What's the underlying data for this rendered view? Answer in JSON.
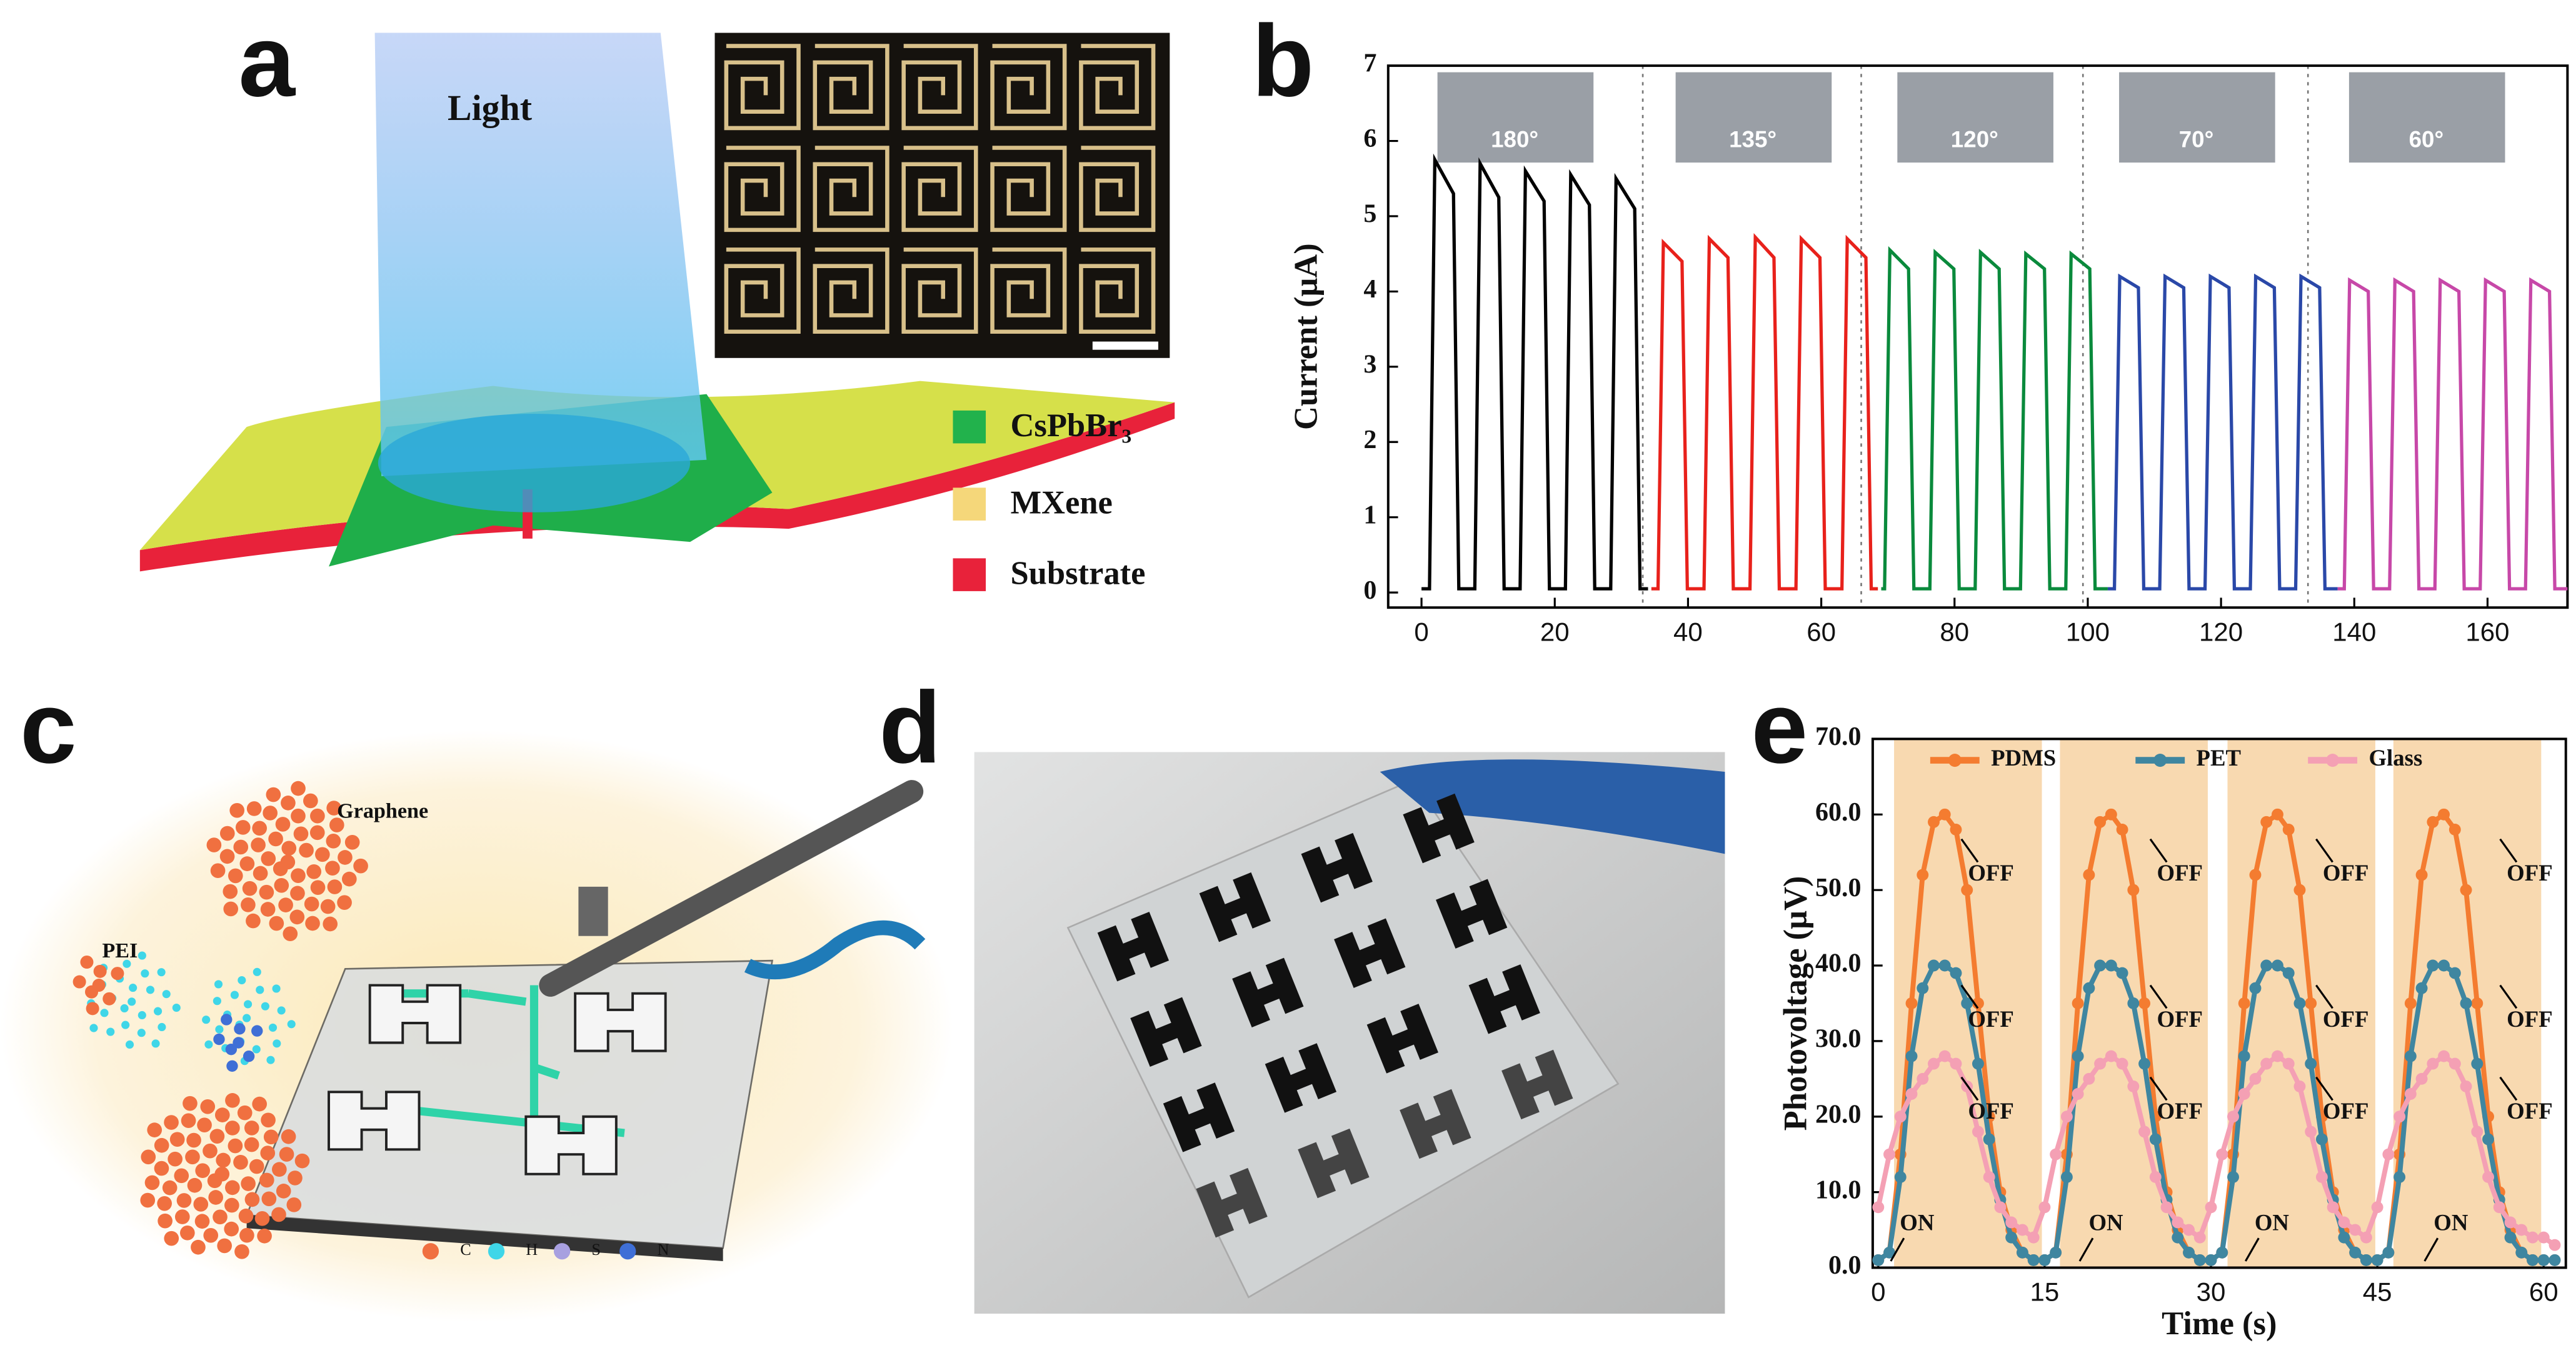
{
  "figure": {
    "panel_labels": [
      "a",
      "b",
      "c",
      "d",
      "e"
    ],
    "panel_a": {
      "beam_label": "Light",
      "legend": [
        "CsPbBr₃",
        "MXene",
        "Substrate"
      ]
    },
    "panel_c": {
      "labels": [
        "Graphene",
        "PEI"
      ],
      "atom_legend": [
        "C",
        "H",
        "S",
        "N"
      ]
    }
  },
  "chart_data": [
    {
      "type": "line",
      "ylabel": "Current (μA)",
      "xlim": [
        -5,
        172
      ],
      "xticks": [
        0,
        20,
        40,
        60,
        80,
        100,
        120,
        140,
        160
      ],
      "ylim": [
        -0.2,
        7
      ],
      "yticks": [
        0,
        1,
        2,
        3,
        4,
        5,
        6,
        7
      ],
      "annotations": [
        "180°",
        "135°",
        "120°",
        "70°",
        "60°"
      ],
      "series": [
        {
          "color": "#000000",
          "x": [
            0,
            1.2,
            2.0,
            4.8,
            5.6,
            8.0,
            8.8,
            11.6,
            12.4,
            14.8,
            15.6,
            18.4,
            19.2,
            21.6,
            22.4,
            25.2,
            26.0,
            28.4,
            29.2,
            32.0,
            32.8,
            34
          ],
          "values": [
            0.05,
            0.05,
            5.75,
            5.3,
            0.05,
            0.05,
            5.7,
            5.25,
            0.05,
            0.05,
            5.6,
            5.2,
            0.05,
            0.05,
            5.55,
            5.15,
            0.05,
            0.05,
            5.5,
            5.1,
            0.05,
            0.05
          ]
        },
        {
          "color": "#e8211b",
          "x": [
            34.5,
            35.5,
            36.3,
            39.1,
            39.9,
            42.4,
            43.2,
            46.0,
            46.8,
            49.3,
            50.1,
            52.9,
            53.7,
            56.2,
            57.0,
            59.8,
            60.6,
            63.1,
            63.9,
            66.7,
            67.5,
            68.5
          ],
          "values": [
            0.05,
            0.05,
            4.65,
            4.4,
            0.05,
            0.05,
            4.7,
            4.45,
            0.05,
            0.05,
            4.72,
            4.45,
            0.05,
            0.05,
            4.7,
            4.45,
            0.05,
            0.05,
            4.7,
            4.45,
            0.05,
            0.05
          ]
        },
        {
          "color": "#0a8a3c",
          "x": [
            69,
            69.5,
            70.3,
            73.1,
            73.9,
            76.3,
            77.1,
            79.9,
            80.7,
            83.1,
            83.9,
            86.7,
            87.5,
            89.9,
            90.7,
            93.5,
            94.3,
            96.7,
            97.5,
            100.3,
            101.1,
            103
          ],
          "values": [
            0.05,
            0.05,
            4.55,
            4.3,
            0.05,
            0.05,
            4.52,
            4.3,
            0.05,
            0.05,
            4.52,
            4.3,
            0.05,
            0.05,
            4.5,
            4.3,
            0.05,
            0.05,
            4.5,
            4.3,
            0.05,
            0.05
          ]
        },
        {
          "color": "#2a48a8",
          "x": [
            103,
            104,
            104.8,
            107.6,
            108.4,
            110.8,
            111.6,
            114.4,
            115.2,
            117.6,
            118.4,
            121.2,
            122.0,
            124.4,
            125.2,
            128.0,
            128.8,
            131.2,
            132.0,
            134.8,
            135.6,
            137.5
          ],
          "values": [
            0.05,
            0.05,
            4.2,
            4.05,
            0.05,
            0.05,
            4.2,
            4.05,
            0.05,
            0.05,
            4.2,
            4.05,
            0.05,
            0.05,
            4.2,
            4.05,
            0.05,
            0.05,
            4.2,
            4.05,
            0.05,
            0.05
          ]
        },
        {
          "color": "#c748a8",
          "x": [
            137.5,
            138.5,
            139.3,
            142.1,
            142.9,
            145.3,
            146.1,
            148.9,
            149.7,
            152.1,
            152.9,
            155.7,
            156.5,
            158.9,
            159.7,
            162.5,
            163.3,
            165.7,
            166.5,
            169.3,
            170.1,
            172
          ],
          "values": [
            0.05,
            0.05,
            4.15,
            4.0,
            0.05,
            0.05,
            4.15,
            4.0,
            0.05,
            0.05,
            4.15,
            4.0,
            0.05,
            0.05,
            4.15,
            4.0,
            0.05,
            0.05,
            4.15,
            4.0,
            0.05,
            0.05
          ]
        }
      ]
    },
    {
      "type": "line",
      "xlabel": "Time (s)",
      "ylabel": "Photovoltage (μV)",
      "xlim": [
        -0.5,
        62
      ],
      "xticks": [
        0,
        15,
        30,
        45,
        60
      ],
      "ylim": [
        0,
        70
      ],
      "yticks": [
        {
          "value": 0,
          "label": "0.0"
        },
        {
          "value": 10,
          "label": "10.0"
        },
        {
          "value": 20,
          "label": "20.0"
        },
        {
          "value": 30,
          "label": "30.0"
        },
        {
          "value": 40,
          "label": "40.0"
        },
        {
          "value": 50,
          "label": "50.0"
        },
        {
          "value": 60,
          "label": "60.0"
        },
        {
          "value": 70,
          "label": "70.0"
        }
      ],
      "annotations": [
        "ON",
        "ON",
        "ON",
        "ON",
        "OFF",
        "OFF",
        "OFF",
        "OFF",
        "OFF",
        "OFF",
        "OFF",
        "OFF",
        "OFF",
        "OFF",
        "OFF",
        "OFF"
      ],
      "x": [
        0,
        1,
        2,
        3,
        4,
        5,
        6,
        7,
        8,
        9,
        10,
        11,
        12,
        13,
        14,
        15,
        16,
        17,
        18,
        19,
        20,
        21,
        22,
        23,
        24,
        25,
        26,
        27,
        28,
        29,
        30,
        31,
        32,
        33,
        34,
        35,
        36,
        37,
        38,
        39,
        40,
        41,
        42,
        43,
        44,
        45,
        46,
        47,
        48,
        49,
        50,
        51,
        52,
        53,
        54,
        55,
        56,
        57,
        58,
        59,
        60,
        61
      ],
      "series": [
        {
          "name": "PDMS",
          "color": "#f47c30",
          "values": [
            1,
            2,
            15,
            35,
            52,
            59,
            60,
            58,
            50,
            35,
            20,
            10,
            5,
            2,
            1,
            1,
            2,
            15,
            35,
            52,
            59,
            60,
            58,
            50,
            35,
            20,
            10,
            5,
            2,
            1,
            1,
            2,
            15,
            35,
            52,
            59,
            60,
            58,
            50,
            35,
            20,
            10,
            5,
            2,
            1,
            1,
            2,
            15,
            35,
            52,
            59,
            60,
            58,
            50,
            35,
            20,
            10,
            5,
            2,
            1,
            1,
            1
          ]
        },
        {
          "name": "PET",
          "color": "#3f86a0",
          "values": [
            1,
            2,
            12,
            28,
            37,
            40,
            40,
            39,
            35,
            27,
            17,
            9,
            4,
            2,
            1,
            1,
            2,
            12,
            28,
            37,
            40,
            40,
            39,
            35,
            27,
            17,
            9,
            4,
            2,
            1,
            1,
            2,
            12,
            28,
            37,
            40,
            40,
            39,
            35,
            27,
            17,
            9,
            4,
            2,
            1,
            1,
            2,
            12,
            28,
            37,
            40,
            40,
            39,
            35,
            27,
            17,
            9,
            4,
            2,
            1,
            1,
            1
          ]
        },
        {
          "name": "Glass",
          "color": "#f4a0b4",
          "values": [
            8,
            15,
            20,
            23,
            25,
            27,
            28,
            27,
            24,
            18,
            12,
            8,
            6,
            5,
            4,
            8,
            15,
            20,
            23,
            25,
            27,
            28,
            27,
            24,
            18,
            12,
            8,
            6,
            5,
            4,
            8,
            15,
            20,
            23,
            25,
            27,
            28,
            27,
            24,
            18,
            12,
            8,
            6,
            5,
            4,
            8,
            15,
            20,
            23,
            25,
            27,
            28,
            27,
            24,
            18,
            12,
            8,
            6,
            5,
            4,
            4,
            3
          ]
        }
      ]
    }
  ]
}
